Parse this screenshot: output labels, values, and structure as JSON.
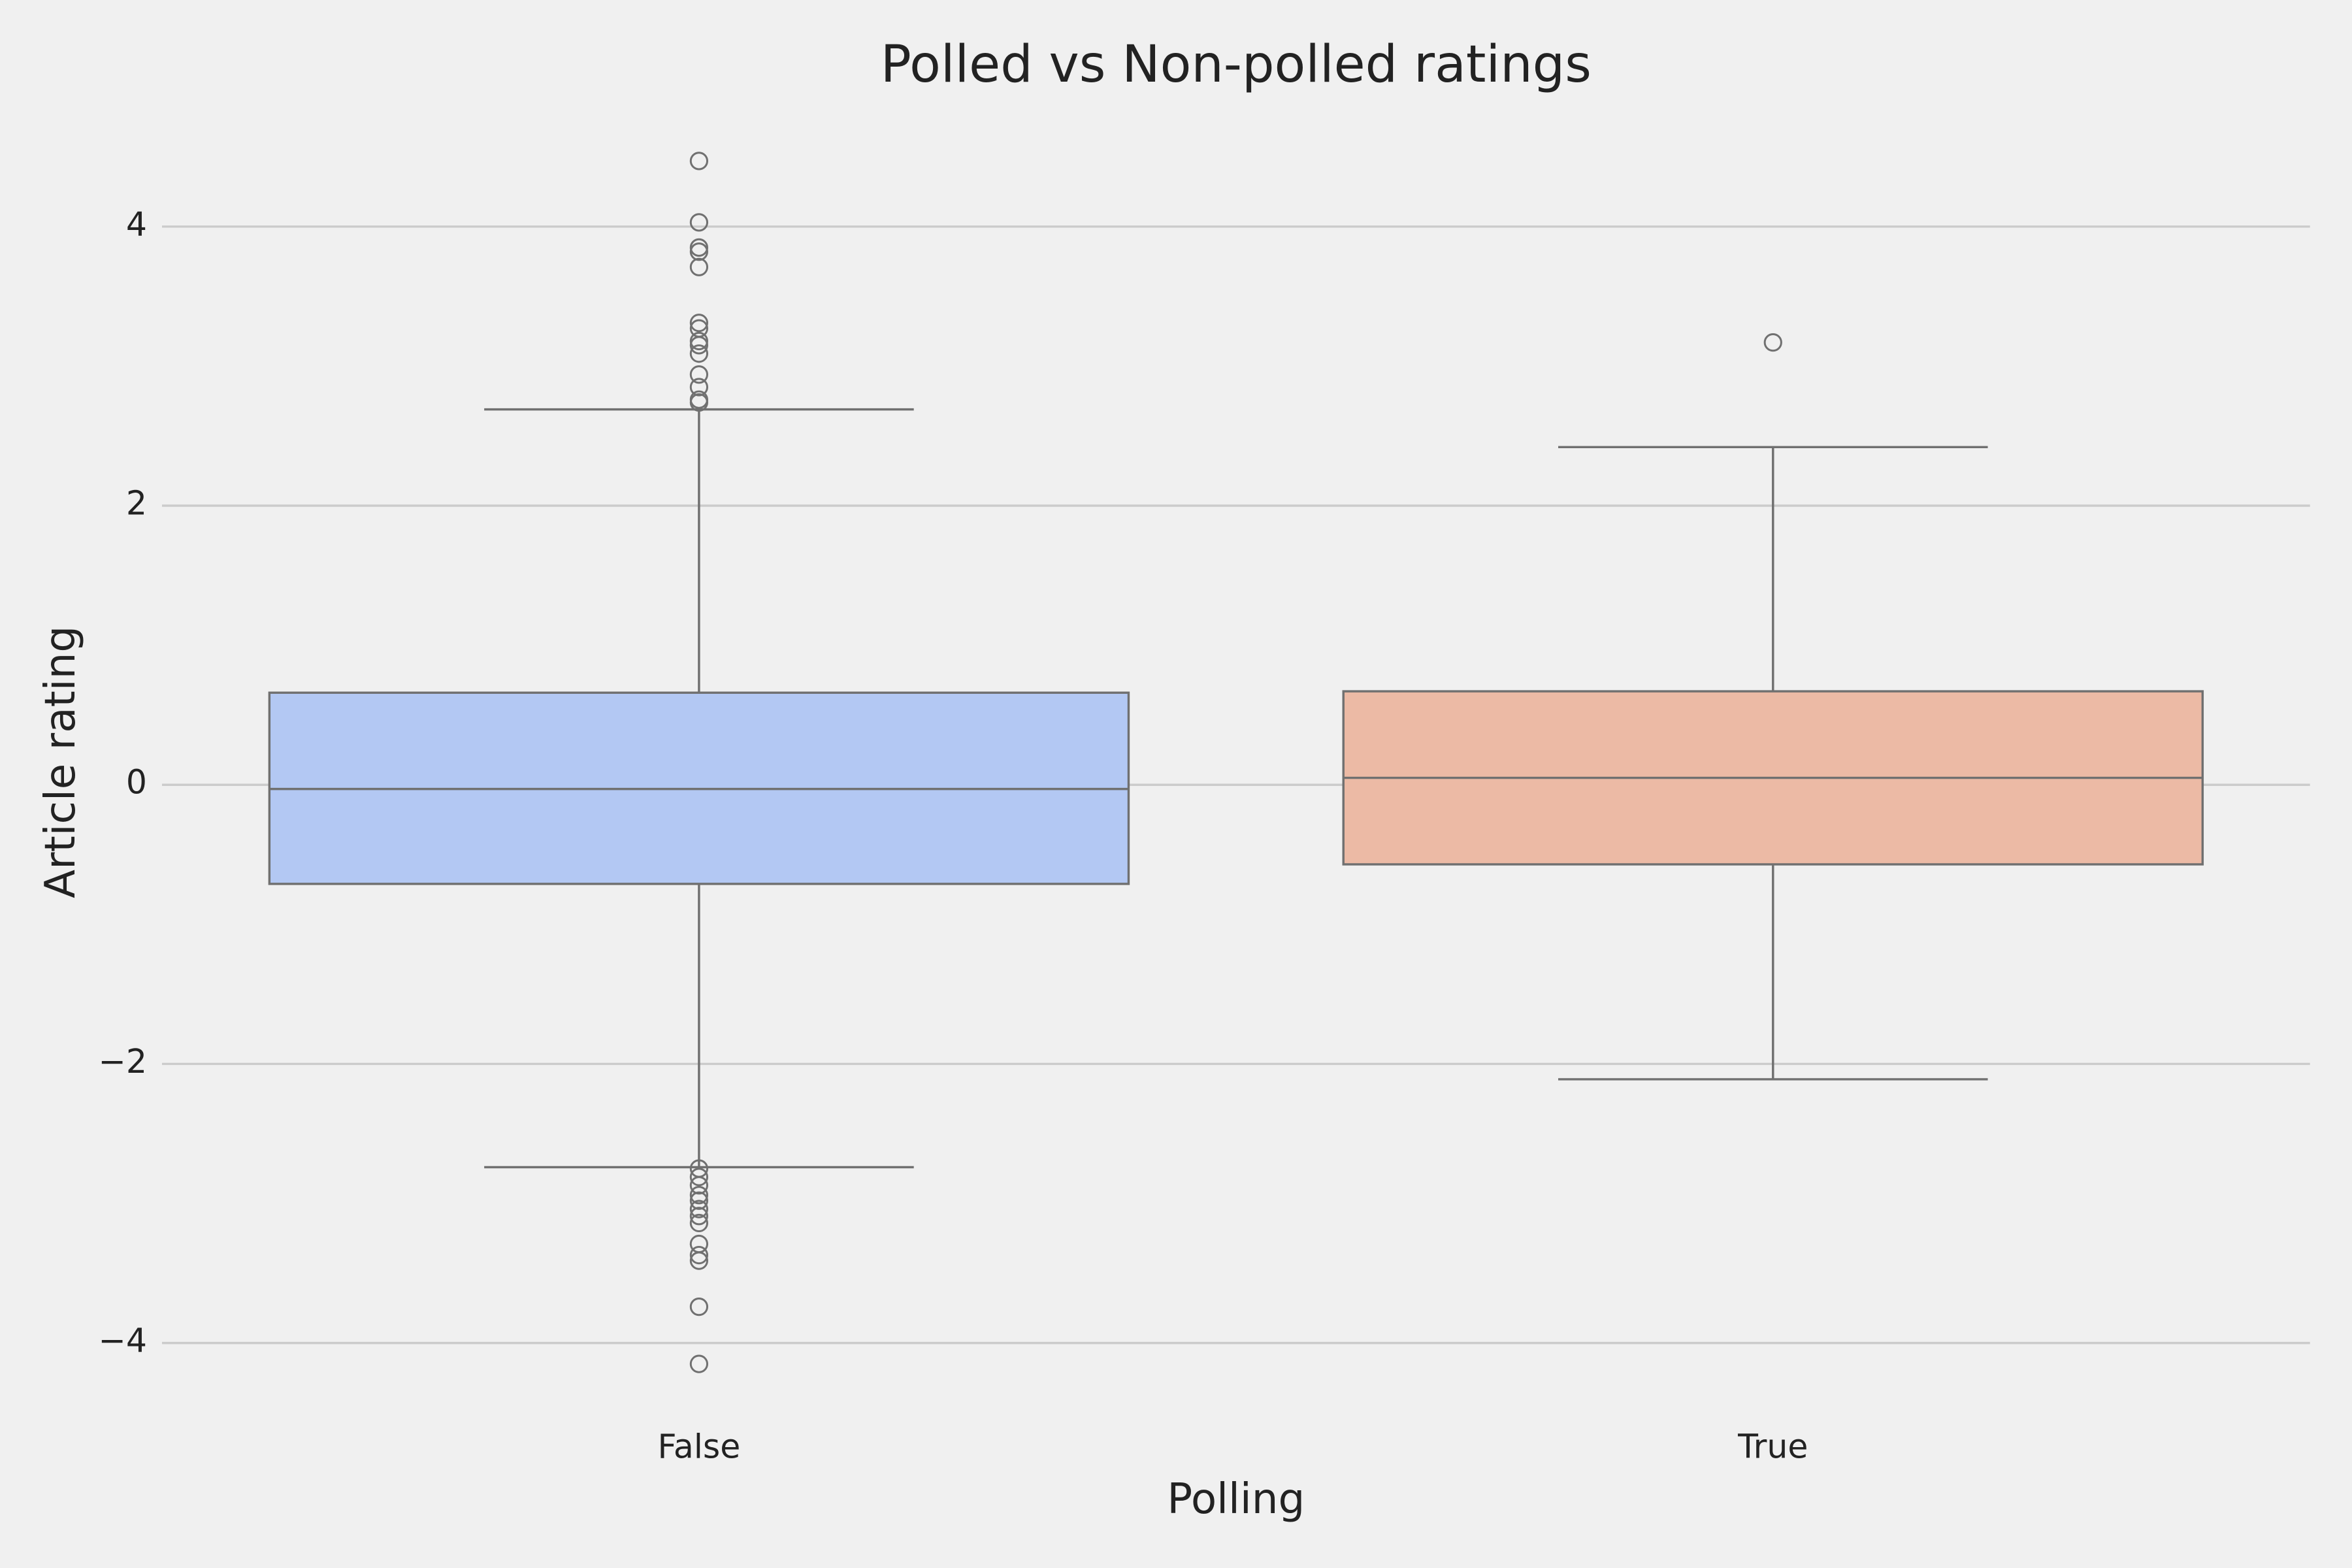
{
  "chart_data": {
    "type": "box",
    "title": "Polled vs Non-polled ratings",
    "x_label": "Polling",
    "y_label": "Article rating",
    "categories": [
      "False",
      "True"
    ],
    "boxes": [
      {
        "whisker_low": -2.74,
        "q1": -0.71,
        "median": -0.03,
        "q3": 0.66,
        "whisker_high": 2.69,
        "outliers": [
          4.47,
          4.03,
          3.85,
          3.82,
          3.71,
          3.31,
          3.27,
          3.18,
          3.15,
          3.09,
          2.94,
          2.85,
          2.76,
          2.74,
          -2.75,
          -2.81,
          -2.87,
          -2.94,
          -2.98,
          -3.04,
          -3.09,
          -3.14,
          -3.29,
          -3.37,
          -3.41,
          -3.74,
          -4.15
        ],
        "color": "#b3c8f3"
      },
      {
        "whisker_low": -2.11,
        "q1": -0.57,
        "median": 0.05,
        "q3": 0.67,
        "whisker_high": 2.42,
        "outliers": [
          3.17
        ],
        "color": "#ecbaa5"
      }
    ],
    "ylim": [
      -4.48,
      4.71
    ],
    "yticks": [
      {
        "value": -4,
        "label": "−4"
      },
      {
        "value": -2,
        "label": "−2"
      },
      0,
      2,
      4
    ],
    "grid": true
  }
}
